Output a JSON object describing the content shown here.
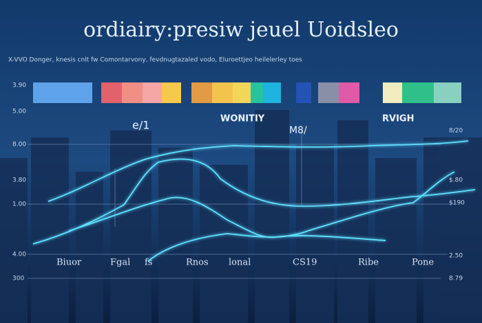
{
  "header": {
    "title": "ordiairy:presiw jeuel Uoidsleo",
    "subtitle": "X-VVO Donger, knesis cnlt fw Comontarvony, fevdnugtazaled vodo, Eluroettjeo heilelerley toes"
  },
  "left_labels": [
    "3.90",
    "5.00",
    "8.00",
    "3.80",
    "1.00",
    "4.00",
    "300"
  ],
  "right_labels": [
    "8/20",
    "$.80",
    "$190",
    "2.50",
    "8.79"
  ],
  "bottom_labels": [
    "Biuor",
    "Fgal",
    "fs",
    "Rnos",
    "lonal",
    "CS19",
    "Ribe",
    "Pone"
  ],
  "chart_labels": [
    "e/1",
    "WONITIY",
    "M8/",
    "RVIGH"
  ]
}
